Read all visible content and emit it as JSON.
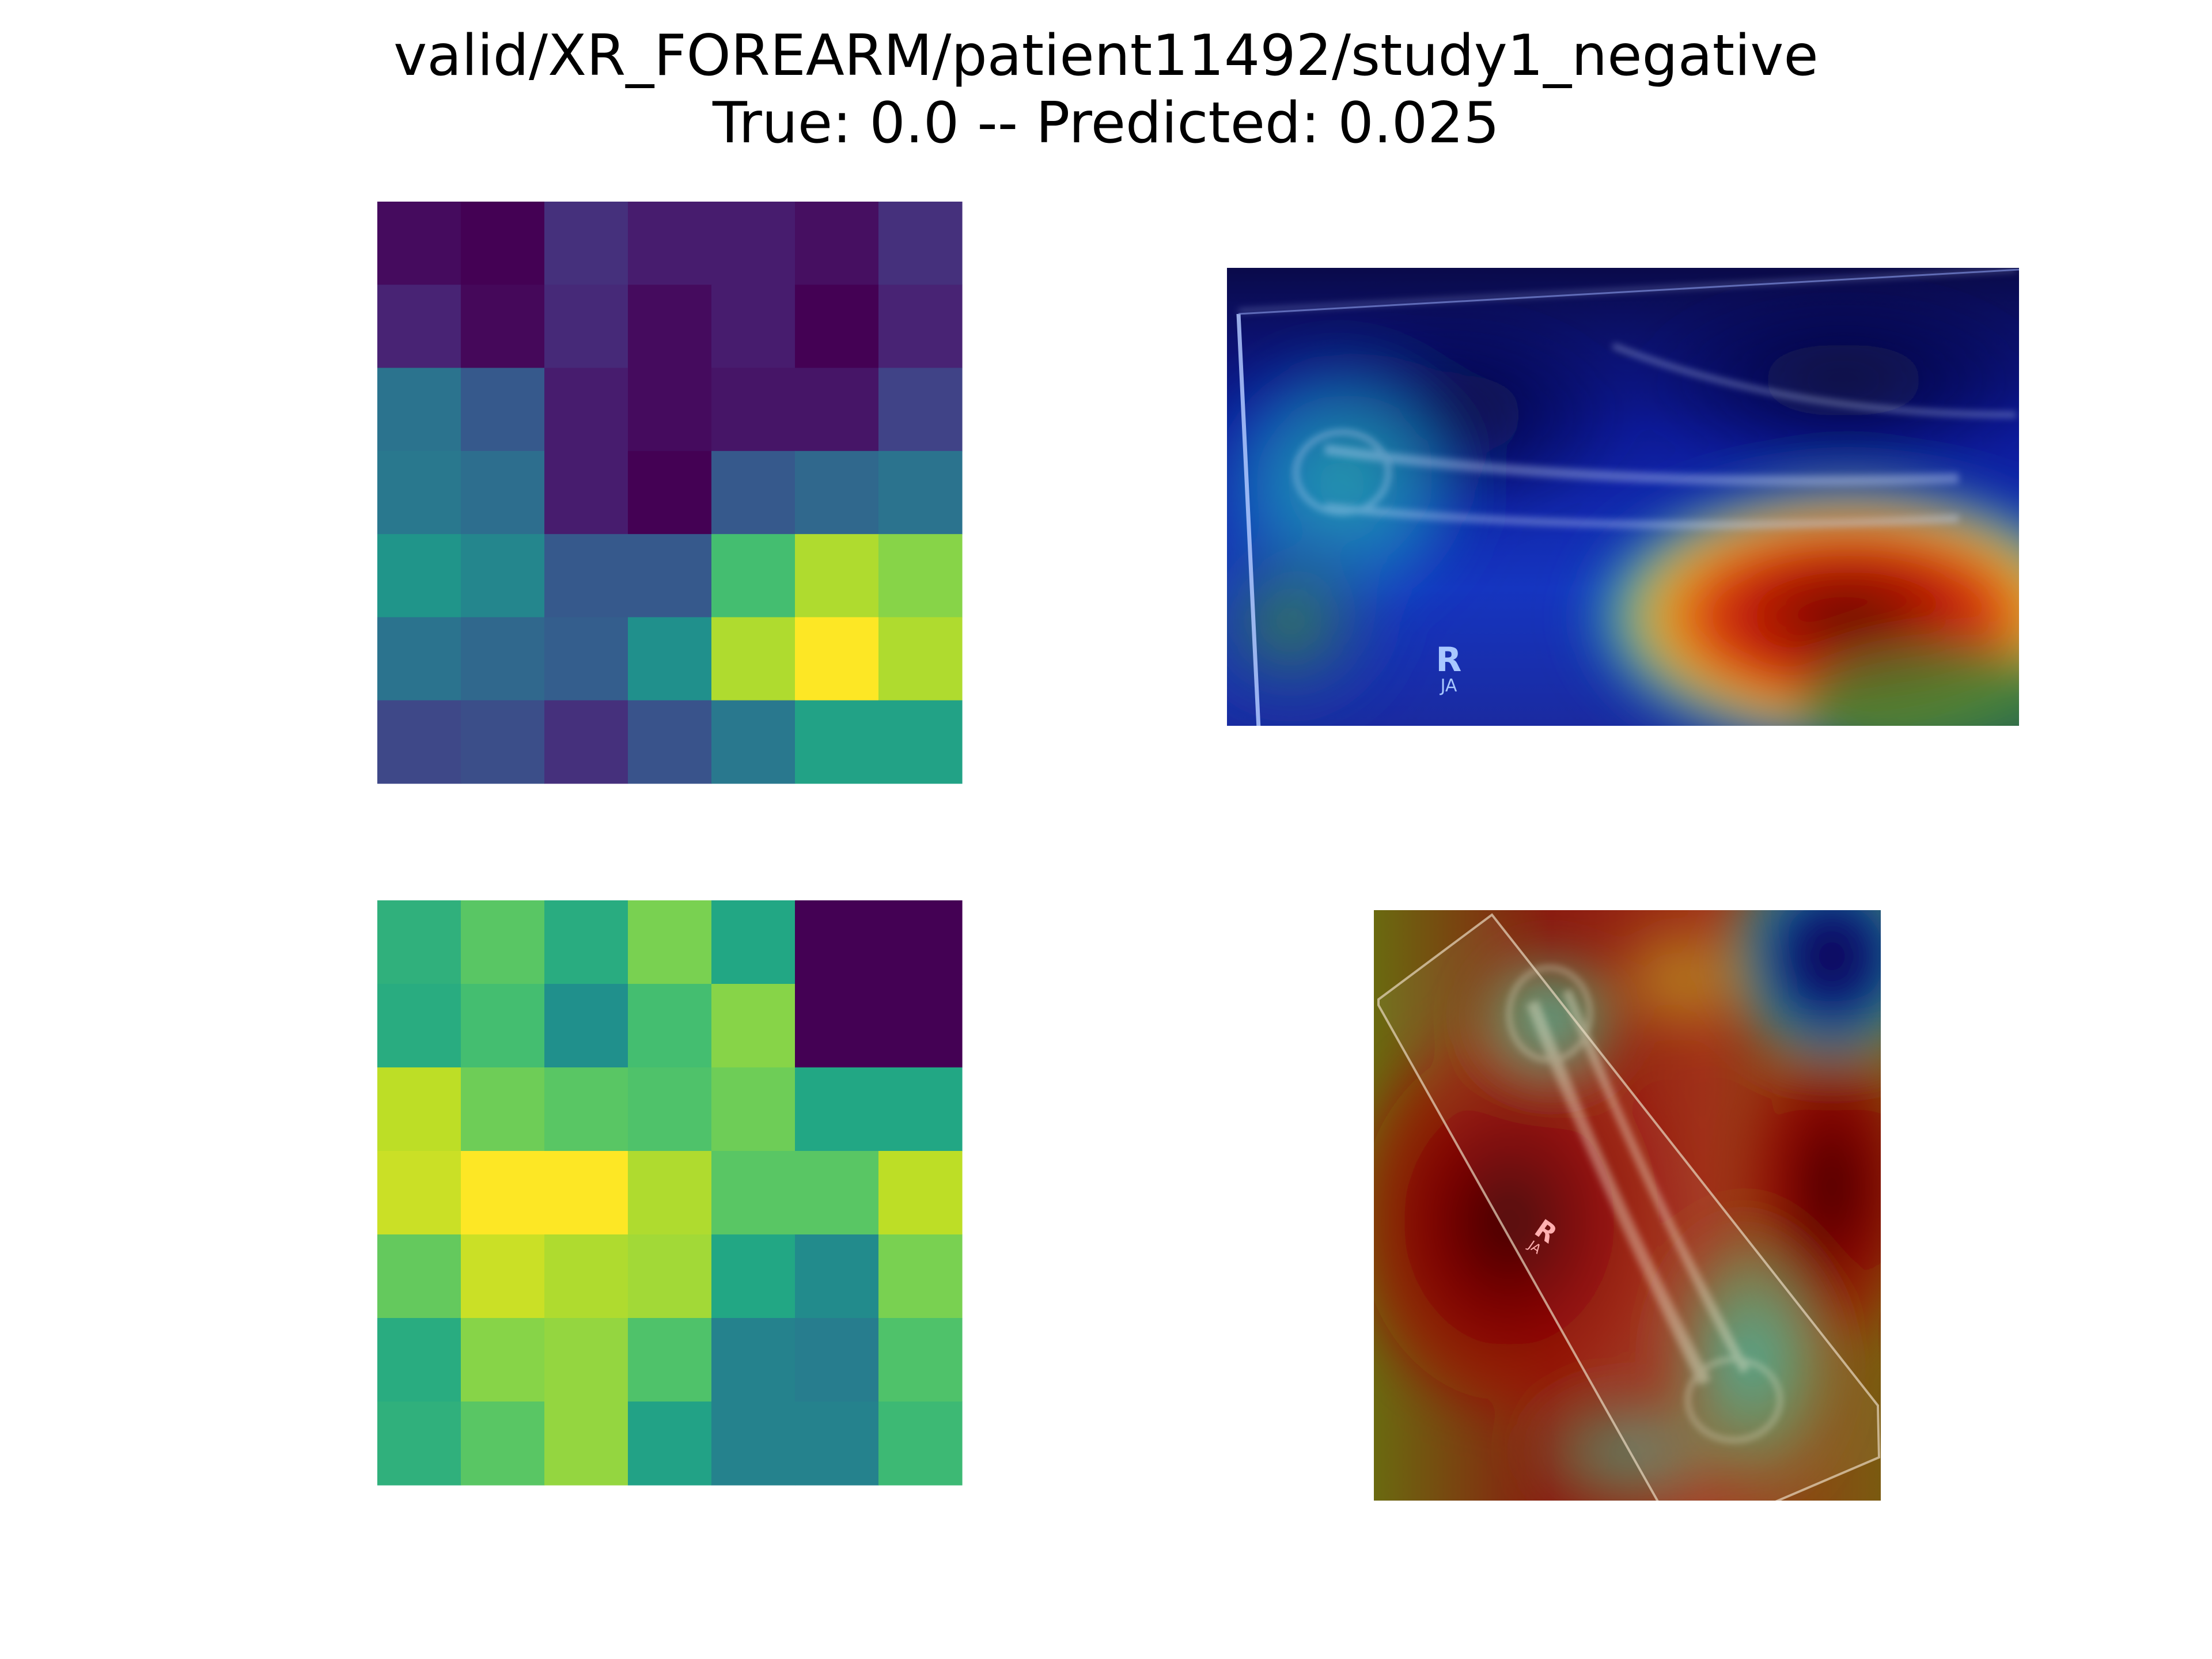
{
  "figure": {
    "title_line_1": "valid/XR_FOREARM/patient11492/study1_negative",
    "title_line_2": "True: 0.0 -- Predicted: 0.025"
  },
  "chart_data": [
    {
      "type": "heatmap",
      "panel": "top-left",
      "colormap": "viridis",
      "value_range": [
        0,
        1
      ],
      "rows": 7,
      "cols": 7,
      "values": [
        [
          0.03,
          0.0,
          0.14,
          0.08,
          0.08,
          0.04,
          0.14
        ],
        [
          0.1,
          0.02,
          0.12,
          0.03,
          0.08,
          0.0,
          0.1
        ],
        [
          0.38,
          0.28,
          0.08,
          0.03,
          0.06,
          0.06,
          0.2
        ],
        [
          0.4,
          0.36,
          0.08,
          0.0,
          0.28,
          0.34,
          0.38
        ],
        [
          0.52,
          0.46,
          0.28,
          0.28,
          0.7,
          0.88,
          0.82
        ],
        [
          0.38,
          0.34,
          0.3,
          0.5,
          0.88,
          1.0,
          0.88
        ],
        [
          0.22,
          0.24,
          0.14,
          0.26,
          0.4,
          0.58,
          0.58
        ]
      ]
    },
    {
      "type": "heatmap",
      "panel": "bottom-left",
      "colormap": "viridis",
      "value_range": [
        0,
        1
      ],
      "rows": 7,
      "cols": 7,
      "values": [
        [
          0.64,
          0.74,
          0.62,
          0.8,
          0.6,
          0.0,
          0.0
        ],
        [
          0.62,
          0.7,
          0.5,
          0.7,
          0.82,
          0.0,
          0.0
        ],
        [
          0.9,
          0.78,
          0.74,
          0.72,
          0.78,
          0.6,
          0.6
        ],
        [
          0.92,
          1.0,
          1.0,
          0.88,
          0.74,
          0.74,
          0.9
        ],
        [
          0.76,
          0.92,
          0.88,
          0.86,
          0.6,
          0.48,
          0.8
        ],
        [
          0.62,
          0.82,
          0.84,
          0.72,
          0.44,
          0.42,
          0.72
        ],
        [
          0.64,
          0.74,
          0.84,
          0.58,
          0.44,
          0.44,
          0.68
        ]
      ]
    }
  ],
  "overlays": {
    "top_right": {
      "label_r": "R",
      "label_ja": "JA",
      "label_color": "#a8c8ff",
      "colormap": "jet"
    },
    "bottom_right": {
      "label_r": "R",
      "label_ja": "JA",
      "label_color": "#ffb0b0",
      "colormap": "jet"
    }
  }
}
